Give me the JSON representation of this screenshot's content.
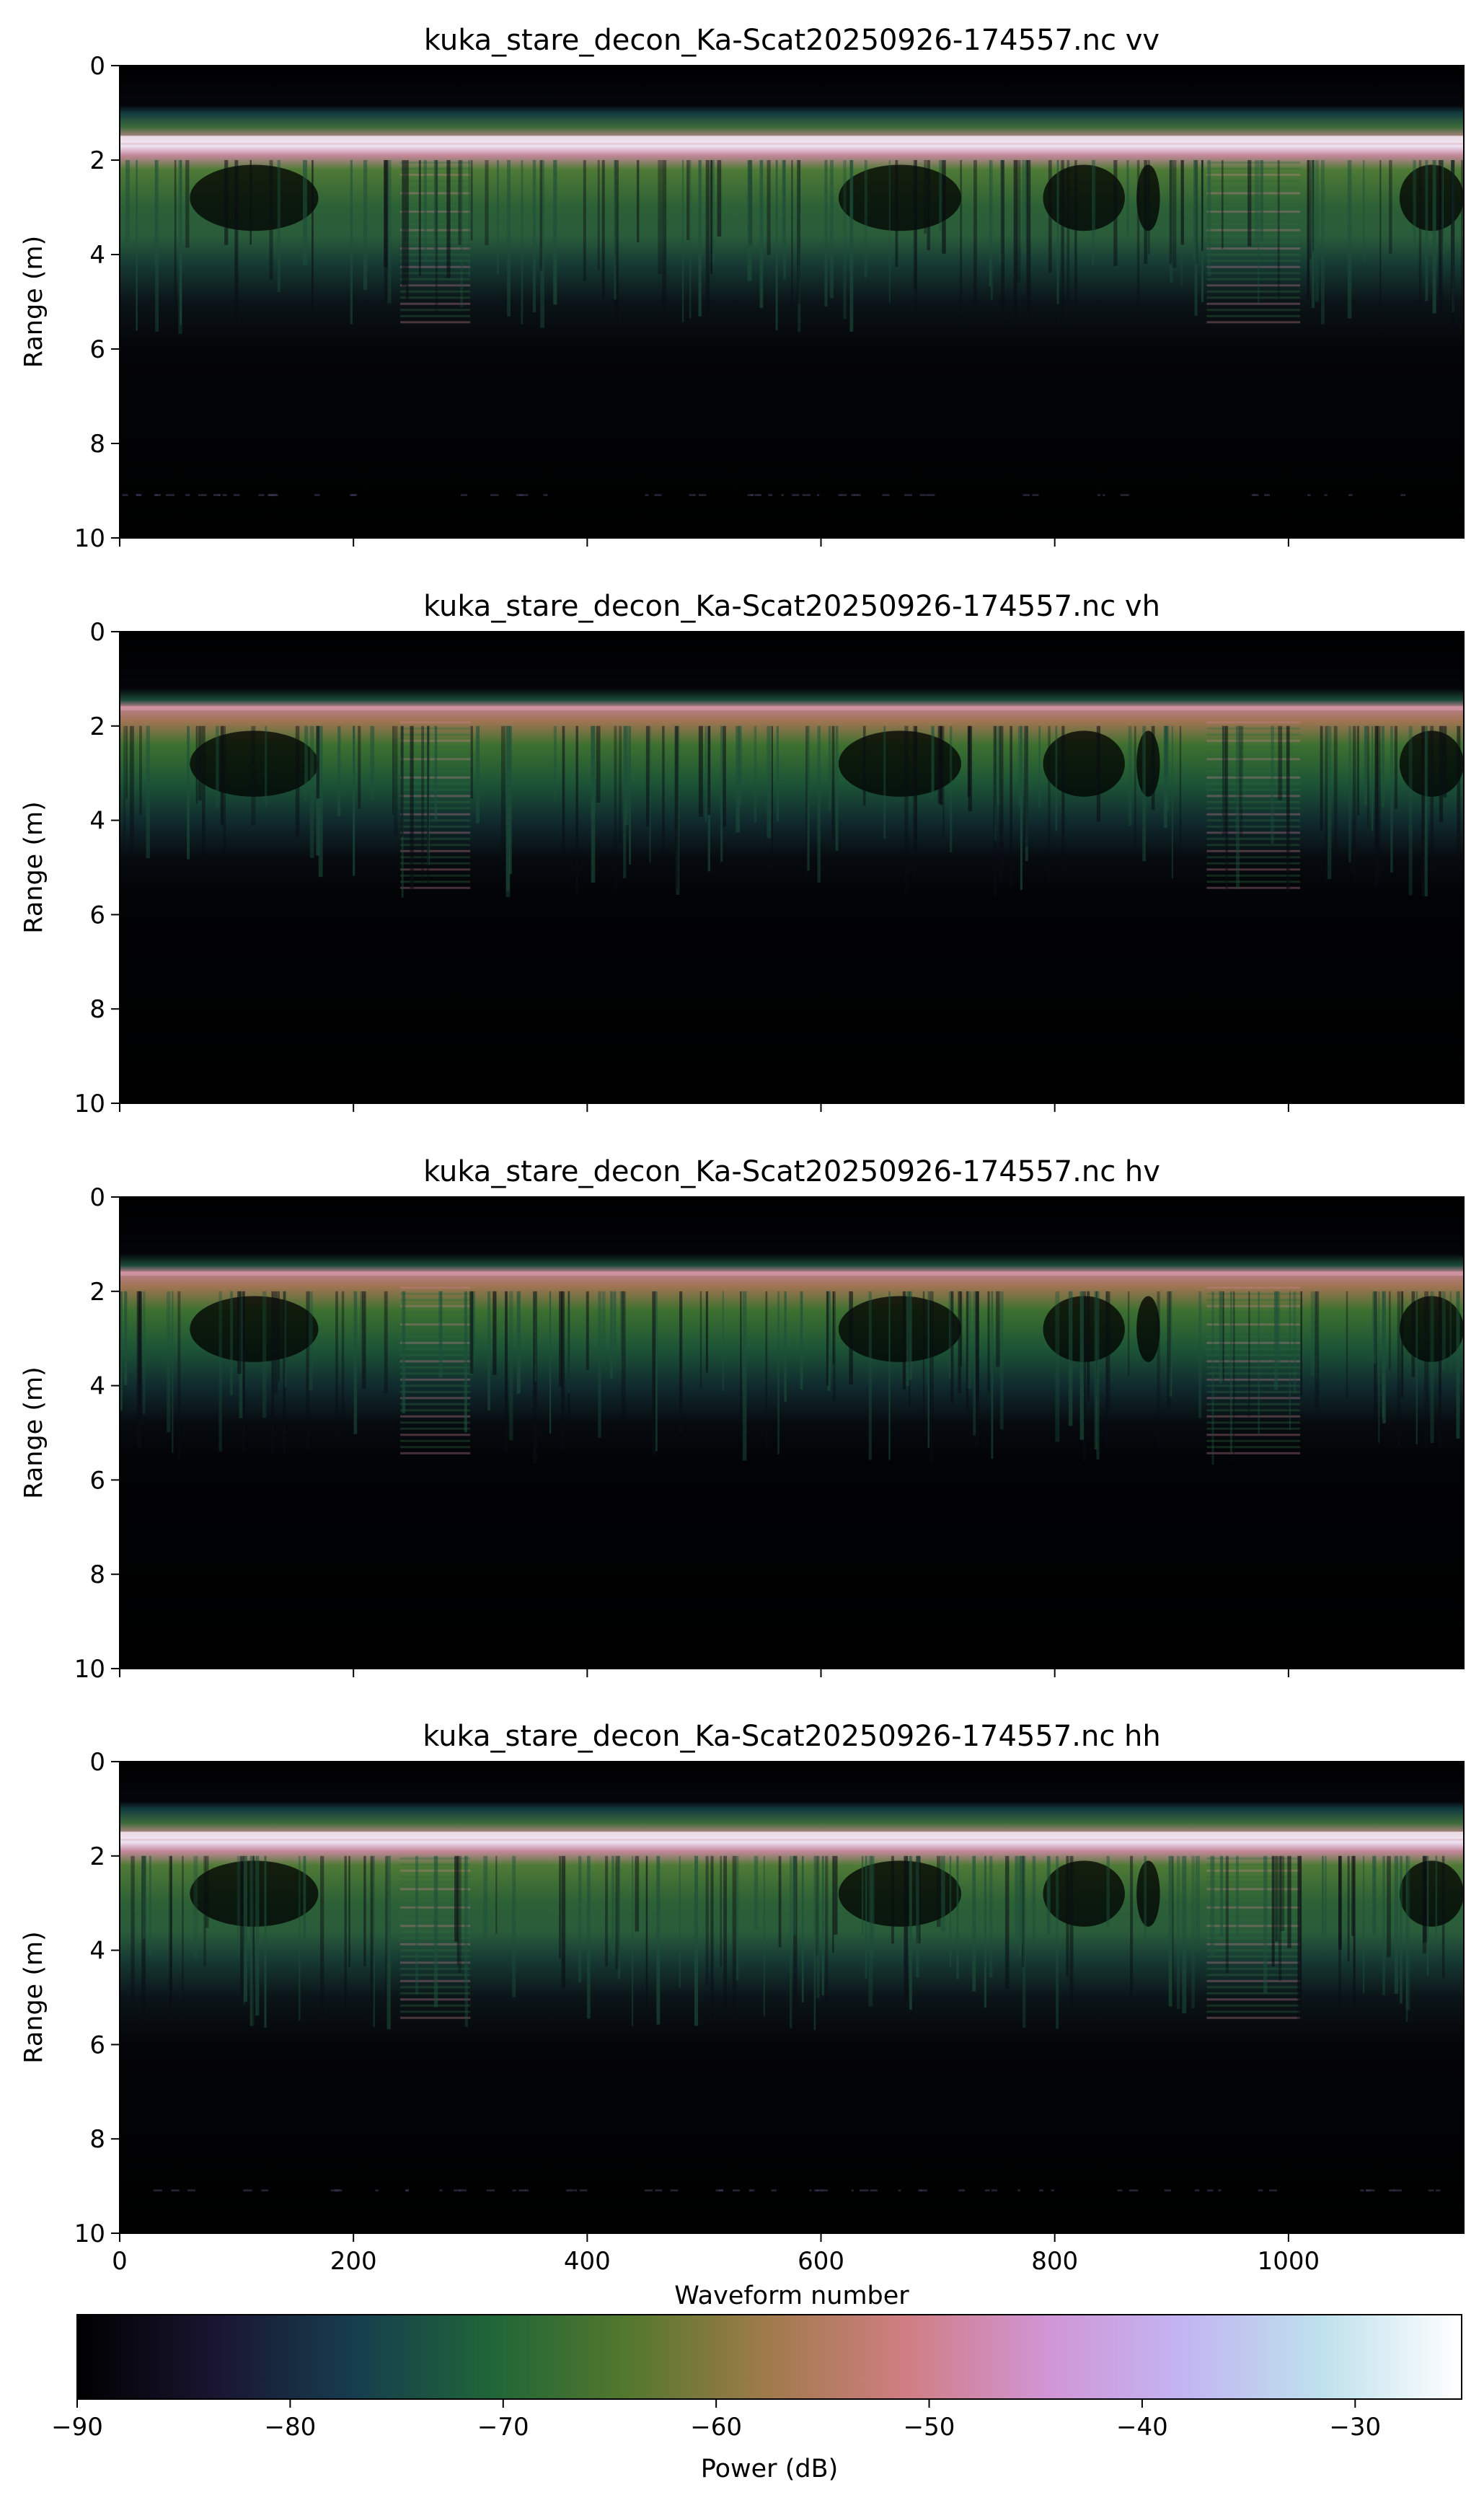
{
  "chart_data": {
    "type": "heatmap",
    "colormap": "cubehelix",
    "shared_x": true,
    "xlabel": "Waveform number",
    "xlim": [
      0,
      1150
    ],
    "xticks": [
      0,
      200,
      400,
      600,
      800,
      1000
    ],
    "panels": [
      {
        "title": "kuka_stare_decon_Ka-Scat20250926-174557.nc vv",
        "ylabel": "Range (m)",
        "ylim": [
          10,
          0
        ],
        "yticks": [
          0,
          2,
          4,
          6,
          8,
          10
        ],
        "features": {
          "surface_range_m": 1.7,
          "noise_floor_db": -90,
          "surface_peak_db": -38,
          "deep_return_range_m": 9.1
        }
      },
      {
        "title": "kuka_stare_decon_Ka-Scat20250926-174557.nc vh",
        "ylabel": "Range (m)",
        "ylim": [
          10,
          0
        ],
        "yticks": [
          0,
          2,
          4,
          6,
          8,
          10
        ],
        "features": {
          "surface_range_m": 1.7,
          "noise_floor_db": -90,
          "surface_peak_db": -52,
          "deep_return_range_m": null
        }
      },
      {
        "title": "kuka_stare_decon_Ka-Scat20250926-174557.nc hv",
        "ylabel": "Range (m)",
        "ylim": [
          10,
          0
        ],
        "yticks": [
          0,
          2,
          4,
          6,
          8,
          10
        ],
        "features": {
          "surface_range_m": 1.7,
          "noise_floor_db": -90,
          "surface_peak_db": -52,
          "deep_return_range_m": null
        }
      },
      {
        "title": "kuka_stare_decon_Ka-Scat20250926-174557.nc hh",
        "ylabel": "Range (m)",
        "ylim": [
          10,
          0
        ],
        "yticks": [
          0,
          2,
          4,
          6,
          8,
          10
        ],
        "features": {
          "surface_range_m": 1.7,
          "noise_floor_db": -90,
          "surface_peak_db": -38,
          "deep_return_range_m": 9.1
        }
      }
    ],
    "colorbar": {
      "label": "Power (dB)",
      "orientation": "horizontal",
      "range": [
        -90,
        -25
      ],
      "ticks": [
        -90,
        -80,
        -70,
        -60,
        -50,
        -40,
        -30
      ]
    }
  }
}
